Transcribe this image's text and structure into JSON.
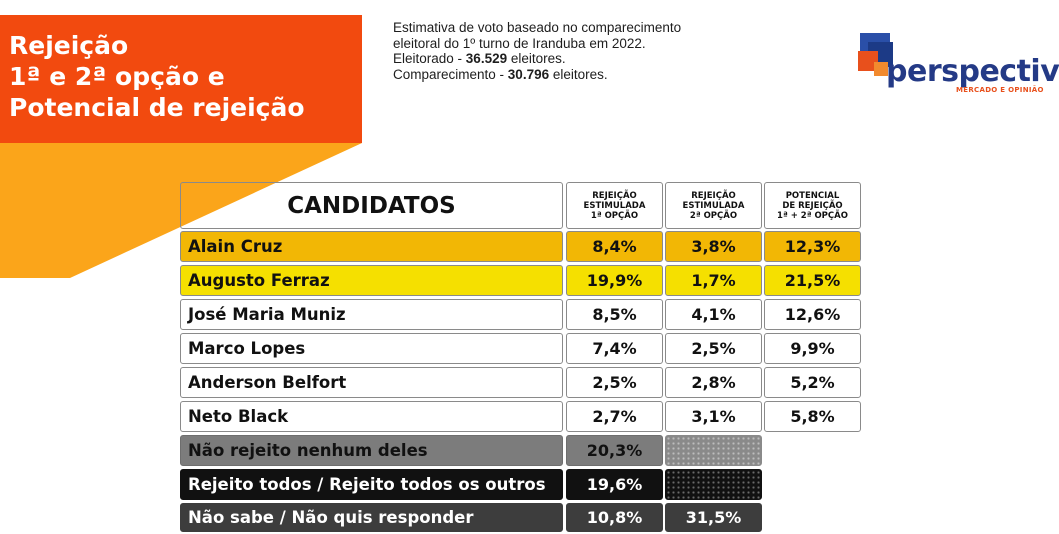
{
  "title": {
    "line1": "Rejeição",
    "line2": "1ª e 2ª opção e",
    "line3": "Potencial de rejeição"
  },
  "notes": {
    "line1": "Estimativa de voto baseado no comparecimento",
    "line2": "eleitoral do 1º turno de Iranduba em 2022.",
    "line3_prefix": "Eleitorado - ",
    "line3_value": "36.529",
    "line3_suffix": " eleitores.",
    "line4_prefix": "Comparecimento - ",
    "line4_value": "30.796",
    "line4_suffix": " eleitores."
  },
  "logo": {
    "word": "perspectiva",
    "tagline": "MERCADO E OPINIÃO",
    "colors": {
      "blue": "#243a86",
      "orange": "#e8501c"
    }
  },
  "table": {
    "header": {
      "candidates": "CANDIDATOS",
      "col1": [
        "REJEIÇÃO",
        "ESTIMULADA",
        "1ª OPÇÃO"
      ],
      "col2": [
        "REJEIÇÃO",
        "ESTIMULADA",
        "2ª OPÇÃO"
      ],
      "col3": [
        "POTENCIAL",
        "DE REJEIÇÃO",
        "1ª + 2ª OPÇÃO"
      ]
    },
    "rows": [
      {
        "name": "Alain Cruz",
        "v1": "8,4%",
        "v2": "3,8%",
        "v3": "12,3%"
      },
      {
        "name": "Augusto Ferraz",
        "v1": "19,9%",
        "v2": "1,7%",
        "v3": "21,5%"
      },
      {
        "name": "José Maria Muniz",
        "v1": "8,5%",
        "v2": "4,1%",
        "v3": "12,6%"
      },
      {
        "name": "Marco Lopes",
        "v1": "7,4%",
        "v2": "2,5%",
        "v3": "9,9%"
      },
      {
        "name": "Anderson Belfort",
        "v1": "2,5%",
        "v2": "2,8%",
        "v3": "5,2%"
      },
      {
        "name": "Neto Black",
        "v1": "2,7%",
        "v2": "3,1%",
        "v3": "5,8%"
      }
    ],
    "extra": [
      {
        "name": "Não rejeito nenhum deles",
        "v1": "20,3%"
      },
      {
        "name": "Rejeito todos / Rejeito todos os outros",
        "v1": "19,6%"
      },
      {
        "name": "Não sabe / Não quis responder",
        "v1": "10,8%",
        "v2": "31,5%"
      }
    ]
  },
  "colors": {
    "title_bg": "#f24a0f",
    "accent_orange": "#fba51a",
    "row_highlight_1": "#f2b705",
    "row_highlight_2": "#f5e000"
  }
}
